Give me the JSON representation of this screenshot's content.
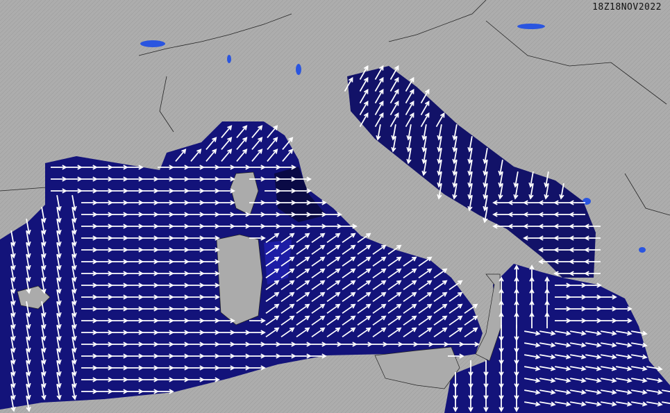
{
  "timestamp": "18Z18NOV2022",
  "colors": {
    "land": "#ababab",
    "sea_deep": "#12126e",
    "sea_mid": "#1c1c9a",
    "sea_dark": "#0a0a45",
    "lakes": "#2a55e0",
    "arrow": "#ffffff",
    "border": "#222222"
  },
  "icons": [
    "wave-direction-arrow-icon"
  ]
}
